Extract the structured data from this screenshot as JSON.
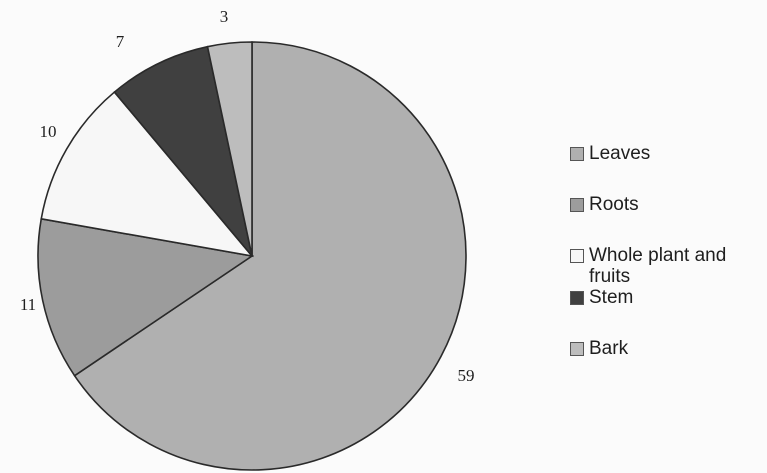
{
  "chart_data": {
    "type": "pie",
    "slices": [
      {
        "label": "Leaves",
        "value": 59,
        "color": "#b0b0b0"
      },
      {
        "label": "Roots",
        "value": 11,
        "color": "#9c9c9c"
      },
      {
        "label": "Whole plant and fruits",
        "value": 10,
        "color": "#f7f7f7"
      },
      {
        "label": "Stem",
        "value": 7,
        "color": "#404040"
      },
      {
        "label": "Bark",
        "value": 3,
        "color": "#bdbdbd"
      }
    ],
    "value_labels": [
      "59",
      "11",
      "10",
      "7",
      "3"
    ],
    "legend_placement": "right",
    "start_angle": "12 o'clock",
    "direction": "clockwise"
  }
}
